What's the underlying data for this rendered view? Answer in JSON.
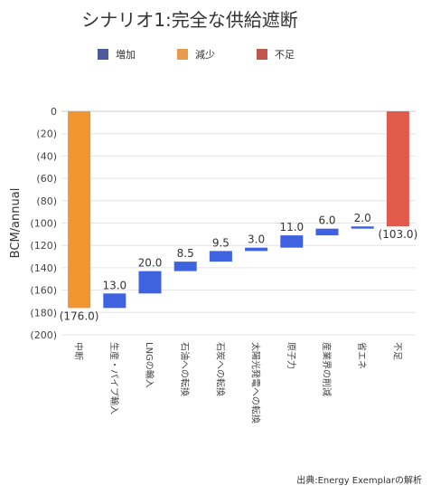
{
  "chart_data": {
    "type": "waterfall",
    "title": "シナリオ1:完全な供給遮断",
    "ylabel": "BCM/annual",
    "ylim": [
      -200,
      0
    ],
    "yticks": [
      "0",
      "(20)",
      "(40)",
      "(60)",
      "(80)",
      "(100)",
      "(120)",
      "(140)",
      "(160)",
      "(180)",
      "(200)"
    ],
    "grid": true,
    "legend_position": "top",
    "legend": [
      {
        "name": "増加",
        "color": "#4a5a9c"
      },
      {
        "name": "減少",
        "color": "#e89a4d"
      },
      {
        "name": "不足",
        "color": "#c0564c"
      }
    ],
    "categories": [
      "中断",
      "生産・パイプ輸入",
      "LNGの輸入",
      "石油への転換",
      "石炭への転換",
      "太陽光発電への転換",
      "原子力",
      "産業界の削減",
      "省エネ",
      "不足"
    ],
    "bars": [
      {
        "kind": "decrease",
        "start": 0,
        "end": -176,
        "label": "(176.0)"
      },
      {
        "kind": "increase",
        "start": -176,
        "end": -163,
        "label": "13.0"
      },
      {
        "kind": "increase",
        "start": -163,
        "end": -143,
        "label": "20.0"
      },
      {
        "kind": "increase",
        "start": -143,
        "end": -134.5,
        "label": "8.5"
      },
      {
        "kind": "increase",
        "start": -134.5,
        "end": -125,
        "label": "9.5"
      },
      {
        "kind": "increase",
        "start": -125,
        "end": -122,
        "label": "3.0"
      },
      {
        "kind": "increase",
        "start": -122,
        "end": -111,
        "label": "11.0"
      },
      {
        "kind": "increase",
        "start": -111,
        "end": -105,
        "label": "6.0"
      },
      {
        "kind": "increase",
        "start": -105,
        "end": -103,
        "label": "2.0"
      },
      {
        "kind": "shortfall",
        "start": 0,
        "end": -103,
        "label": "(103.0)"
      }
    ],
    "colors": {
      "decrease": "#f0952f",
      "increase": "#3f62e0",
      "shortfall": "#e25a4a"
    }
  },
  "source": "出典:Energy Exemplarの解析"
}
